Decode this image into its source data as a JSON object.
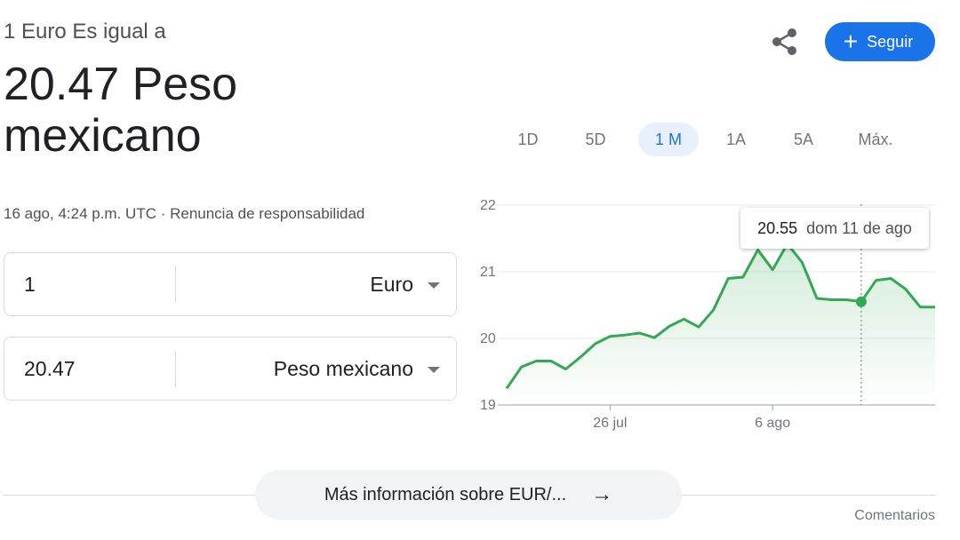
{
  "header": {
    "subtitle": "1 Euro Es igual a",
    "value_line": "20.47 Peso mexicano",
    "timestamp": "16 ago, 4:24 p.m. UTC · Renuncia de responsabilidad",
    "follow_label": "Seguir",
    "share_icon": "share-icon",
    "plus_icon": "plus-icon"
  },
  "converter": {
    "from": {
      "amount": "1",
      "currency": "Euro"
    },
    "to": {
      "amount": "20.47",
      "currency": "Peso mexicano"
    }
  },
  "range_tabs": [
    "1D",
    "5D",
    "1 M",
    "1A",
    "5A",
    "Máx."
  ],
  "active_range": "1 M",
  "chart_data": {
    "type": "area",
    "y_ticks": [
      22,
      21,
      20,
      19
    ],
    "ylim": [
      19,
      22
    ],
    "x_tick_labels": [
      "26 jul",
      "6 ago"
    ],
    "values": [
      19.25,
      19.57,
      19.66,
      19.66,
      19.54,
      19.72,
      19.92,
      20.03,
      20.05,
      20.08,
      20.01,
      20.18,
      20.29,
      20.17,
      20.43,
      20.9,
      20.92,
      21.33,
      21.03,
      21.42,
      21.14,
      20.6,
      20.58,
      20.58,
      20.55,
      20.87,
      20.9,
      20.74,
      20.47,
      20.47
    ],
    "tooltip": {
      "value": "20.55",
      "date": "dom 11 de ago"
    },
    "line_color": "#34a853"
  },
  "footer": {
    "more_label": "Más información sobre EUR/...",
    "feedback_label": "Comentarios"
  },
  "colors": {
    "accent": "#1a73e8",
    "line": "#34a853"
  }
}
